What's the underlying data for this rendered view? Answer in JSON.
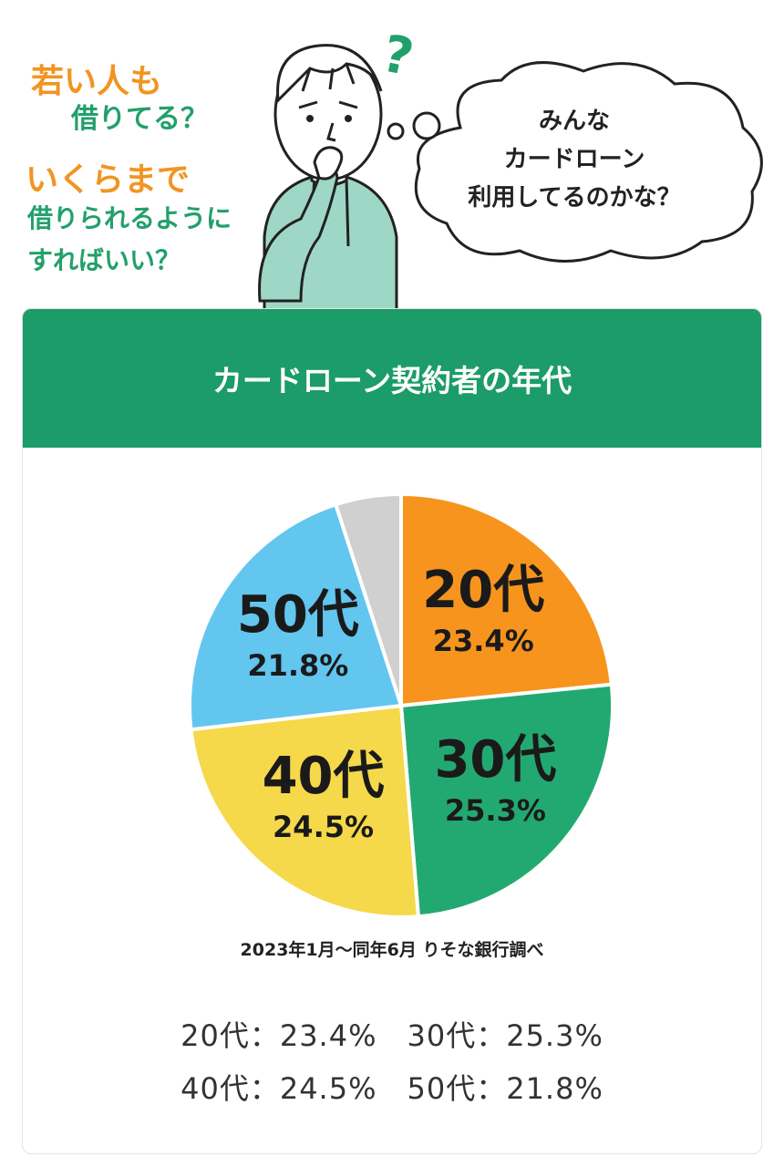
{
  "hero": {
    "question1_line1": "若い人も",
    "question1_line2": "借りてる？",
    "question2_line1": "いくらまで",
    "question2_line2": "借りられるように",
    "question2_line3": "すればいい？",
    "thought_line1": "みんな",
    "thought_line2": "カードローン",
    "thought_line3": "利用してるのかな？",
    "question_mark": "?"
  },
  "card": {
    "title": "カードローン契約者の年代",
    "source": "2023年1月～同年6月  りそな銀行調べ",
    "summary_line1": "20代：23.4%　30代：25.3%",
    "summary_line2": "40代：24.5%　50代：21.8%"
  },
  "colors": {
    "header": "#1b9c68",
    "orange": "#f7941d",
    "green": "#22a971",
    "yellow": "#f5d94a",
    "blue": "#62c6ef",
    "gray": "#d0d0d0"
  },
  "chart_data": {
    "type": "pie",
    "title": "カードローン契約者の年代",
    "slices": [
      {
        "label": "20代",
        "value": 23.4,
        "value_label": "23.4%",
        "color": "#f7941d"
      },
      {
        "label": "30代",
        "value": 25.3,
        "value_label": "25.3%",
        "color": "#22a971"
      },
      {
        "label": "40代",
        "value": 24.5,
        "value_label": "24.5%",
        "color": "#f5d94a"
      },
      {
        "label": "50代",
        "value": 21.8,
        "value_label": "21.8%",
        "color": "#62c6ef"
      },
      {
        "label": "",
        "value": 5.0,
        "value_label": "",
        "color": "#d0d0d0"
      }
    ]
  }
}
